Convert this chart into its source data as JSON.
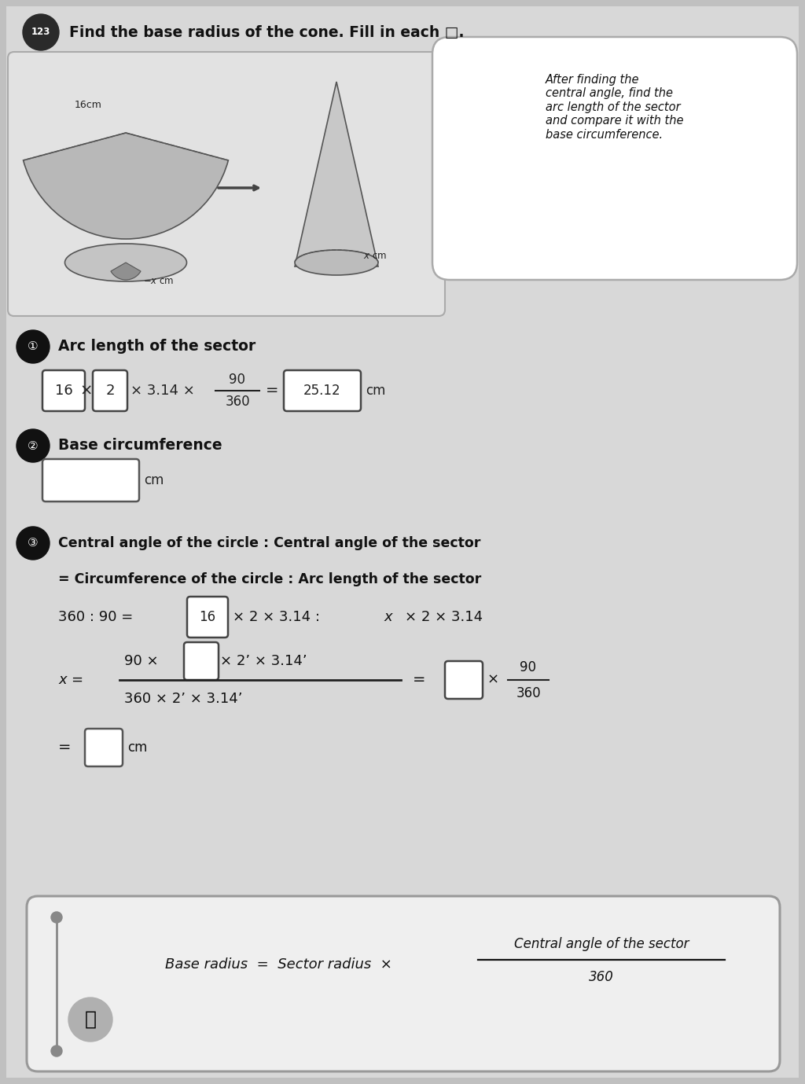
{
  "title": "Find the base radius of the cone. Fill in each □.",
  "title_num": "123",
  "bubble_text": "After finding the\ncentral angle, find the\narc length of the sector\nand compare it with the\nbase circumference.",
  "section1_label": "Arc length of the sector",
  "section2_label": "Base circumference",
  "section3_label": "Central angle of the circle : Central angle of the sector",
  "section3_sub": "= Circumference of the circle : Arc length of the sector",
  "formula_frac_num": "Central angle of the sector",
  "formula_frac_den": "360"
}
